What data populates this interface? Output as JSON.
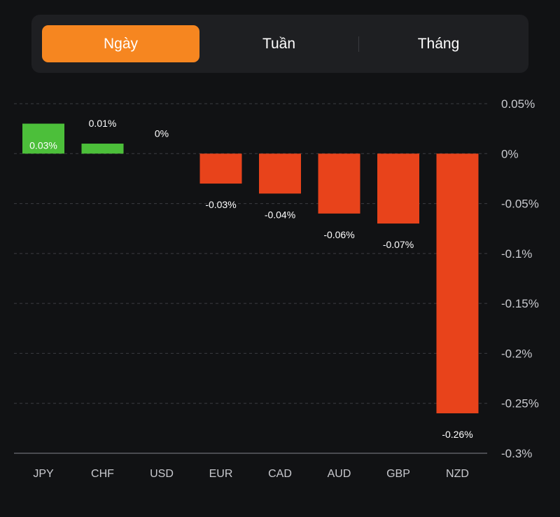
{
  "period_tabs": [
    {
      "label": "Ngày",
      "active": true
    },
    {
      "label": "Tuần",
      "active": false
    },
    {
      "label": "Tháng",
      "active": false
    }
  ],
  "colors": {
    "accent": "#f68620",
    "positive": "#4cbf3a",
    "negative": "#e8431b",
    "background": "#111214"
  },
  "chart_data": {
    "type": "bar",
    "title": "",
    "xlabel": "",
    "ylabel": "",
    "categories": [
      "JPY",
      "CHF",
      "USD",
      "EUR",
      "CAD",
      "AUD",
      "GBP",
      "NZD"
    ],
    "values": [
      0.03,
      0.01,
      0,
      -0.03,
      -0.04,
      -0.06,
      -0.07,
      -0.26
    ],
    "value_labels": [
      "0.03%",
      "0.01%",
      "0%",
      "-0.03%",
      "-0.04%",
      "-0.06%",
      "-0.07%",
      "-0.26%"
    ],
    "ylim": [
      -0.3,
      0.05
    ],
    "yticks": [
      0.05,
      0,
      -0.05,
      -0.1,
      -0.15,
      -0.2,
      -0.25,
      -0.3
    ],
    "ytick_labels": [
      "0.05%",
      "0%",
      "-0.05%",
      "-0.1%",
      "-0.15%",
      "-0.2%",
      "-0.25%",
      "-0.3%"
    ],
    "y_axis_position": "right",
    "grid": true,
    "legend": "none"
  }
}
